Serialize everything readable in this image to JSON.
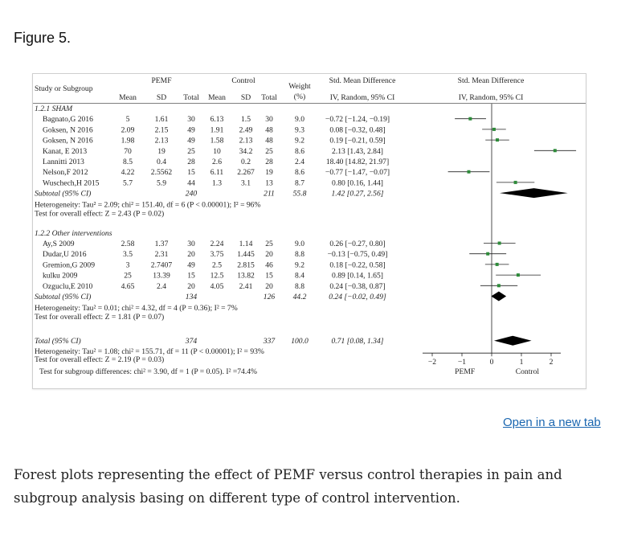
{
  "figure": {
    "title": "Figure 5.",
    "open_link": "Open in a new tab",
    "caption": "Forest plots representing the effect of PEMF versus control therapies in pain and subgroup analysis basing on different type of control intervention."
  },
  "chart_data": {
    "type": "forest",
    "headers": {
      "study": "Study or Subgroup",
      "pemf": "PEMF",
      "control": "Control",
      "mean": "Mean",
      "sd": "SD",
      "total": "Total",
      "weight": "Weight",
      "weight_unit": "(%)",
      "smd": "Std. Mean Difference",
      "smd_method": "IV, Random, 95% CI"
    },
    "groups": [
      {
        "label": "1.2.1 SHAM",
        "studies": [
          {
            "name": "Bagnato,G 2016",
            "pm": "5",
            "psd": "1.61",
            "pn": "30",
            "cm": "6.13",
            "csd": "1.5",
            "cn": "30",
            "w": "9.0",
            "ci": "−0.72 [−1.24, −0.19]",
            "est": -0.72,
            "lo": -1.24,
            "hi": -0.19
          },
          {
            "name": "Goksen, N 2016",
            "pm": "2.09",
            "psd": "2.15",
            "pn": "49",
            "cm": "1.91",
            "csd": "2.49",
            "cn": "48",
            "w": "9.3",
            "ci": "0.08 [−0.32, 0.48]",
            "est": 0.08,
            "lo": -0.32,
            "hi": 0.48
          },
          {
            "name": "Goksen, N 2016",
            "pm": "1.98",
            "psd": "2.13",
            "pn": "49",
            "cm": "1.58",
            "csd": "2.13",
            "cn": "48",
            "w": "9.2",
            "ci": "0.19 [−0.21, 0.59]",
            "est": 0.19,
            "lo": -0.21,
            "hi": 0.59
          },
          {
            "name": "Kanat, E 2013",
            "pm": "70",
            "psd": "19",
            "pn": "25",
            "cm": "10",
            "csd": "34.2",
            "cn": "25",
            "w": "8.6",
            "ci": "2.13 [1.43, 2.84]",
            "est": 2.13,
            "lo": 1.43,
            "hi": 2.84
          },
          {
            "name": "Lannitti 2013",
            "pm": "8.5",
            "psd": "0.4",
            "pn": "28",
            "cm": "2.6",
            "csd": "0.2",
            "cn": "28",
            "w": "2.4",
            "ci": "18.40 [14.82, 21.97]",
            "est": 18.4,
            "lo": 14.82,
            "hi": 21.97,
            "offscale": true
          },
          {
            "name": "Nelson,F 2012",
            "pm": "4.22",
            "psd": "2.5562",
            "pn": "15",
            "cm": "6.11",
            "csd": "2.267",
            "cn": "19",
            "w": "8.6",
            "ci": "−0.77 [−1.47, −0.07]",
            "est": -0.77,
            "lo": -1.47,
            "hi": -0.07
          },
          {
            "name": "Wuschech,H 2015",
            "pm": "5.7",
            "psd": "5.9",
            "pn": "44",
            "cm": "1.3",
            "csd": "3.1",
            "cn": "13",
            "w": "8.7",
            "ci": "0.80 [0.16, 1.44]",
            "est": 0.8,
            "lo": 0.16,
            "hi": 1.44
          }
        ],
        "subtotal": {
          "label": "Subtotal (95% CI)",
          "pn": "240",
          "cn": "211",
          "w": "55.8",
          "ci": "1.42 [0.27, 2.56]",
          "est": 1.42,
          "lo": 0.27,
          "hi": 2.56
        },
        "heterogeneity": "Heterogeneity: Tau² = 2.09; chi² = 151.40, df = 6 (P < 0.00001); I² = 96%",
        "overall": "Test for overall effect: Z = 2.43 (P = 0.02)"
      },
      {
        "label": "1.2.2 Other interventions",
        "studies": [
          {
            "name": "Ay,S 2009",
            "pm": "2.58",
            "psd": "1.37",
            "pn": "30",
            "cm": "2.24",
            "csd": "1.14",
            "cn": "25",
            "w": "9.0",
            "ci": "0.26 [−0.27, 0.80]",
            "est": 0.26,
            "lo": -0.27,
            "hi": 0.8
          },
          {
            "name": "Dudar,U 2016",
            "pm": "3.5",
            "psd": "2.31",
            "pn": "20",
            "cm": "3.75",
            "csd": "1.445",
            "cn": "20",
            "w": "8.8",
            "ci": "−0.13 [−0.75, 0.49]",
            "est": -0.13,
            "lo": -0.75,
            "hi": 0.49
          },
          {
            "name": "Gremion,G 2009",
            "pm": "3",
            "psd": "2.7407",
            "pn": "49",
            "cm": "2.5",
            "csd": "2.815",
            "cn": "46",
            "w": "9.2",
            "ci": "0.18 [−0.22, 0.58]",
            "est": 0.18,
            "lo": -0.22,
            "hi": 0.58
          },
          {
            "name": "kulku 2009",
            "pm": "25",
            "psd": "13.39",
            "pn": "15",
            "cm": "12.5",
            "csd": "13.82",
            "cn": "15",
            "w": "8.4",
            "ci": "0.89 [0.14, 1.65]",
            "est": 0.89,
            "lo": 0.14,
            "hi": 1.65
          },
          {
            "name": "Ozguclu,E 2010",
            "pm": "4.65",
            "psd": "2.4",
            "pn": "20",
            "cm": "4.05",
            "csd": "2.41",
            "cn": "20",
            "w": "8.8",
            "ci": "0.24 [−0.38, 0.87]",
            "est": 0.24,
            "lo": -0.38,
            "hi": 0.87
          }
        ],
        "subtotal": {
          "label": "Subtotal (95% CI)",
          "pn": "134",
          "cn": "126",
          "w": "44.2",
          "ci": "0.24 [−0.02, 0.49]",
          "est": 0.24,
          "lo": -0.02,
          "hi": 0.49
        },
        "heterogeneity": "Heterogeneity: Tau² = 0.01; chi² = 4.32, df = 4 (P = 0.36); I² = 7%",
        "overall": "Test for overall effect: Z = 1.81 (P = 0.07)"
      }
    ],
    "total": {
      "label": "Total (95% CI)",
      "pn": "374",
      "cn": "337",
      "w": "100.0",
      "ci": "0.71 [0.08, 1.34]",
      "est": 0.71,
      "lo": 0.08,
      "hi": 1.34
    },
    "total_heterogeneity": "Heterogeneity: Tau² = 1.08; chi² = 155.71, df = 11 (P < 0.00001); I² = 93%",
    "total_overall": "Test for overall effect: Z = 2.19 (P = 0.03)",
    "subgroup_test": "Test for subgroup differences: chi² = 3.90, df = 1 (P = 0.05). I² =74.4%",
    "axis": {
      "ticks": [
        -2,
        -1,
        0,
        1,
        2
      ],
      "tick_labels": [
        "−2",
        "−1",
        "0",
        "1",
        "2"
      ],
      "xlim": [
        -2,
        2
      ],
      "left_label": "PEMF",
      "right_label": "Control"
    }
  }
}
